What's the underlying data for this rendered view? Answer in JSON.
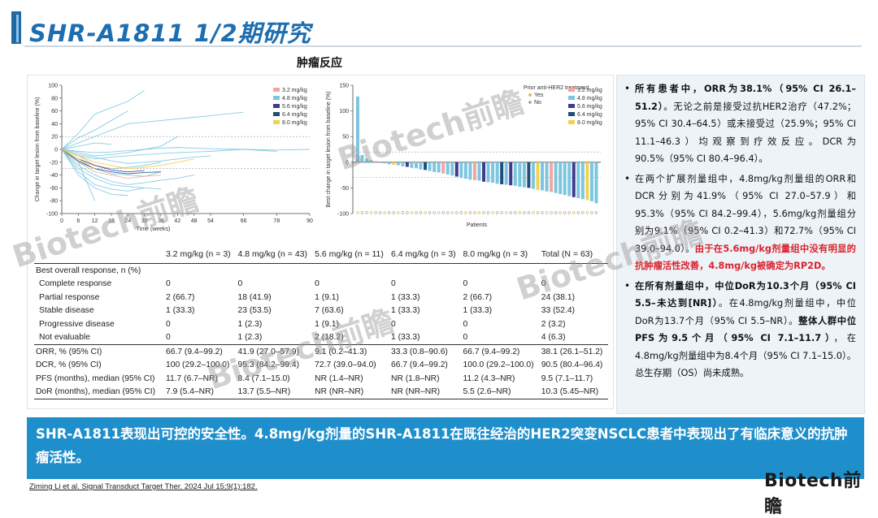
{
  "slide": {
    "title": "SHR-A1811 1/2期研究",
    "subtitle": "肿瘤反应"
  },
  "colors": {
    "accent": "#1f6aa5",
    "title_blue": "#1d6eb0",
    "banner": "#1f8fcc",
    "highlight_red": "#d9232d",
    "dose_3_2": "#f2a6a0",
    "dose_4_8": "#7cc6e0",
    "dose_5_6": "#3f3a8c",
    "dose_6_4": "#1f4e7a",
    "dose_8_0": "#f2d24c"
  },
  "chart_data": [
    {
      "type": "line",
      "ylabel": "Change in target lesion from baseline (%)",
      "xlabel": "Time (weeks)",
      "x_ticks": [
        "0",
        "6",
        "12",
        "18",
        "24",
        "30",
        "36",
        "42",
        "48",
        "54",
        "66",
        "78",
        "90"
      ],
      "y_ticks": [
        "100",
        "80",
        "60",
        "40",
        "20",
        "0",
        "-20",
        "-40",
        "-60",
        "-80",
        "-100"
      ],
      "xlim": [
        0,
        90
      ],
      "ylim": [
        -100,
        100
      ],
      "reference_lines": [
        20,
        -30
      ],
      "legend": [
        {
          "name": "3.2 mg/kg",
          "color_key": "dose_3_2"
        },
        {
          "name": "4.8 mg/kg",
          "color_key": "dose_4_8"
        },
        {
          "name": "5.6 mg/kg",
          "color_key": "dose_5_6"
        },
        {
          "name": "6.4 mg/kg",
          "color_key": "dose_6_4"
        },
        {
          "name": "8.0 mg/kg",
          "color_key": "dose_8_0"
        }
      ],
      "series": [
        {
          "dose": "dose_4_8",
          "x": [
            0,
            6,
            12,
            18,
            24,
            36,
            48,
            66
          ],
          "y": [
            0,
            10,
            20,
            30,
            40,
            45,
            50,
            58
          ]
        },
        {
          "dose": "dose_4_8",
          "x": [
            0,
            6,
            12,
            24,
            30
          ],
          "y": [
            0,
            25,
            55,
            75,
            92
          ]
        },
        {
          "dose": "dose_4_8",
          "x": [
            0,
            6,
            12,
            18,
            24
          ],
          "y": [
            0,
            18,
            30,
            45,
            60
          ]
        },
        {
          "dose": "dose_4_8",
          "x": [
            0,
            6,
            12,
            18,
            24,
            30,
            36,
            42
          ],
          "y": [
            0,
            -5,
            -10,
            -8,
            -5,
            0,
            5,
            20
          ]
        },
        {
          "dose": "dose_4_8",
          "x": [
            0,
            6,
            12,
            18,
            30,
            42,
            54,
            66,
            78
          ],
          "y": [
            0,
            -10,
            -15,
            -12,
            -8,
            -5,
            -3,
            0,
            -3
          ]
        },
        {
          "dose": "dose_4_8",
          "x": [
            0,
            6,
            12,
            18,
            24,
            30,
            36
          ],
          "y": [
            0,
            -20,
            -30,
            -38,
            -40,
            -42,
            -35
          ]
        },
        {
          "dose": "dose_4_8",
          "x": [
            0,
            6,
            12,
            18,
            24,
            30,
            36,
            42,
            48
          ],
          "y": [
            0,
            -25,
            -40,
            -50,
            -55,
            -52,
            -48,
            -45,
            -40
          ]
        },
        {
          "dose": "dose_4_8",
          "x": [
            0,
            6,
            12,
            18,
            24,
            30
          ],
          "y": [
            0,
            -35,
            -55,
            -62,
            -65,
            -60
          ]
        },
        {
          "dose": "dose_4_8",
          "x": [
            0,
            6,
            12,
            18,
            24
          ],
          "y": [
            0,
            -40,
            -60,
            -70,
            -72
          ]
        },
        {
          "dose": "dose_4_8",
          "x": [
            0,
            6,
            12,
            18,
            24,
            30,
            36
          ],
          "y": [
            0,
            -15,
            -25,
            -30,
            -28,
            -25,
            -20
          ]
        },
        {
          "dose": "dose_4_8",
          "x": [
            0,
            6,
            12,
            18,
            24,
            30,
            36,
            42,
            48,
            54
          ],
          "y": [
            0,
            -8,
            -12,
            -18,
            -22,
            -20,
            -18,
            -15,
            -12,
            -10
          ]
        },
        {
          "dose": "dose_4_8",
          "x": [
            0,
            6,
            12,
            18
          ],
          "y": [
            0,
            5,
            10,
            8
          ]
        },
        {
          "dose": "dose_4_8",
          "x": [
            0,
            6,
            12,
            18,
            24,
            30,
            36,
            42,
            48,
            54,
            66,
            78,
            90
          ],
          "y": [
            0,
            -3,
            -5,
            -4,
            -2,
            0,
            2,
            3,
            2,
            1,
            0,
            -1,
            0
          ]
        },
        {
          "dose": "dose_4_8",
          "x": [
            0,
            6,
            12,
            18,
            24,
            30,
            36
          ],
          "y": [
            0,
            -30,
            -45,
            -55,
            -58,
            -60,
            -62
          ]
        },
        {
          "dose": "dose_4_8",
          "x": [
            0,
            6,
            12
          ],
          "y": [
            0,
            -20,
            -80
          ]
        },
        {
          "dose": "dose_3_2",
          "x": [
            0,
            6,
            12,
            18,
            24,
            30,
            36
          ],
          "y": [
            0,
            -20,
            -35,
            -40,
            -45,
            -42,
            -40
          ]
        },
        {
          "dose": "dose_3_2",
          "x": [
            0,
            6,
            12,
            18
          ],
          "y": [
            0,
            -10,
            -25,
            -30
          ]
        },
        {
          "dose": "dose_5_6",
          "x": [
            0,
            6,
            12,
            18,
            24,
            30
          ],
          "y": [
            0,
            -15,
            -25,
            -32,
            -35,
            -33
          ]
        },
        {
          "dose": "dose_6_4",
          "x": [
            0,
            6,
            12,
            18,
            24,
            30,
            36
          ],
          "y": [
            0,
            -18,
            -30,
            -35,
            -38,
            -36,
            -35
          ]
        },
        {
          "dose": "dose_8_0",
          "x": [
            0,
            6,
            12,
            18,
            24,
            30,
            36,
            42,
            48
          ],
          "y": [
            0,
            -10,
            -20,
            -25,
            -30,
            -28,
            -25,
            -20,
            -15
          ]
        },
        {
          "dose": "dose_8_0",
          "x": [
            0,
            6,
            12
          ],
          "y": [
            0,
            -15,
            -30
          ]
        }
      ]
    },
    {
      "type": "bar",
      "ylabel": "Best change in target lesion from baseline (%)",
      "xlabel": "Patients",
      "y_ticks": [
        "150",
        "100",
        "50",
        "0",
        "-50",
        "-100"
      ],
      "ylim": [
        -100,
        150
      ],
      "reference_lines": [
        20,
        -30
      ],
      "legend_markers": [
        {
          "name": "Prior anti-HER2 treatment",
          "symbol": "none"
        },
        {
          "name": "Yes",
          "symbol": "dot-yellow"
        },
        {
          "name": "No",
          "symbol": "dot-grey"
        }
      ],
      "legend": [
        {
          "name": "3.2 mg/kg",
          "color_key": "dose_3_2"
        },
        {
          "name": "4.8 mg/kg",
          "color_key": "dose_4_8"
        },
        {
          "name": "5.6 mg/kg",
          "color_key": "dose_5_6"
        },
        {
          "name": "6.4 mg/kg",
          "color_key": "dose_6_4"
        },
        {
          "name": "8.0 mg/kg",
          "color_key": "dose_8_0"
        }
      ],
      "bars": [
        {
          "v": 128,
          "d": "dose_4_8"
        },
        {
          "v": 14,
          "d": "dose_4_8"
        },
        {
          "v": 7,
          "d": "dose_4_8"
        },
        {
          "v": 4,
          "d": "dose_4_8"
        },
        {
          "v": 2,
          "d": "dose_3_2"
        },
        {
          "v": 1,
          "d": "dose_4_8"
        },
        {
          "v": -2,
          "d": "dose_4_8"
        },
        {
          "v": -4,
          "d": "dose_4_8"
        },
        {
          "v": -5,
          "d": "dose_8_0"
        },
        {
          "v": -6,
          "d": "dose_4_8"
        },
        {
          "v": -8,
          "d": "dose_4_8"
        },
        {
          "v": -9,
          "d": "dose_5_6"
        },
        {
          "v": -11,
          "d": "dose_4_8"
        },
        {
          "v": -12,
          "d": "dose_4_8"
        },
        {
          "v": -14,
          "d": "dose_4_8"
        },
        {
          "v": -15,
          "d": "dose_6_4"
        },
        {
          "v": -17,
          "d": "dose_4_8"
        },
        {
          "v": -19,
          "d": "dose_4_8"
        },
        {
          "v": -20,
          "d": "dose_4_8"
        },
        {
          "v": -22,
          "d": "dose_3_2"
        },
        {
          "v": -24,
          "d": "dose_4_8"
        },
        {
          "v": -26,
          "d": "dose_4_8"
        },
        {
          "v": -28,
          "d": "dose_5_6"
        },
        {
          "v": -30,
          "d": "dose_4_8"
        },
        {
          "v": -32,
          "d": "dose_4_8"
        },
        {
          "v": -34,
          "d": "dose_4_8"
        },
        {
          "v": -35,
          "d": "dose_3_2"
        },
        {
          "v": -36,
          "d": "dose_4_8"
        },
        {
          "v": -38,
          "d": "dose_5_6"
        },
        {
          "v": -39,
          "d": "dose_4_8"
        },
        {
          "v": -40,
          "d": "dose_4_8"
        },
        {
          "v": -42,
          "d": "dose_4_8"
        },
        {
          "v": -43,
          "d": "dose_6_4"
        },
        {
          "v": -44,
          "d": "dose_4_8"
        },
        {
          "v": -45,
          "d": "dose_5_6"
        },
        {
          "v": -46,
          "d": "dose_4_8"
        },
        {
          "v": -48,
          "d": "dose_4_8"
        },
        {
          "v": -49,
          "d": "dose_4_8"
        },
        {
          "v": -50,
          "d": "dose_6_4"
        },
        {
          "v": -52,
          "d": "dose_4_8"
        },
        {
          "v": -54,
          "d": "dose_8_0"
        },
        {
          "v": -55,
          "d": "dose_4_8"
        },
        {
          "v": -57,
          "d": "dose_4_8"
        },
        {
          "v": -58,
          "d": "dose_3_2"
        },
        {
          "v": -60,
          "d": "dose_4_8"
        },
        {
          "v": -62,
          "d": "dose_4_8"
        },
        {
          "v": -64,
          "d": "dose_4_8"
        },
        {
          "v": -66,
          "d": "dose_4_8"
        },
        {
          "v": -68,
          "d": "dose_5_6"
        },
        {
          "v": -70,
          "d": "dose_4_8"
        },
        {
          "v": -72,
          "d": "dose_4_8"
        },
        {
          "v": -74,
          "d": "dose_8_0"
        },
        {
          "v": -76,
          "d": "dose_4_8"
        },
        {
          "v": -80,
          "d": "dose_4_8"
        }
      ]
    }
  ],
  "table": {
    "headers": [
      "",
      "3.2 mg/kg (n = 3)",
      "4.8 mg/kg (n = 43)",
      "5.6 mg/kg (n = 11)",
      "6.4 mg/kg (n = 3)",
      "8.0 mg/kg (n = 3)",
      "Total (N = 63)"
    ],
    "section_label": "Best overall response, n (%)",
    "rows": [
      {
        "label": "Complete response",
        "cells": [
          "0",
          "0",
          "0",
          "0",
          "0",
          "0"
        ]
      },
      {
        "label": "Partial response",
        "cells": [
          "2 (66.7)",
          "18 (41.9)",
          "1 (9.1)",
          "1 (33.3)",
          "2 (66.7)",
          "24 (38.1)"
        ]
      },
      {
        "label": "Stable disease",
        "cells": [
          "1 (33.3)",
          "23 (53.5)",
          "7 (63.6)",
          "1 (33.3)",
          "1 (33.3)",
          "33 (52.4)"
        ]
      },
      {
        "label": "Progressive disease",
        "cells": [
          "0",
          "1 (2.3)",
          "1 (9.1)",
          "0",
          "0",
          "2 (3.2)"
        ]
      },
      {
        "label": "Not evaluable",
        "cells": [
          "0",
          "1 (2.3)",
          "2 (18.2)",
          "1 (33.3)",
          "0",
          "4 (6.3)"
        ]
      },
      {
        "label": "ORR, % (95% CI)",
        "cells": [
          "66.7 (9.4–99.2)",
          "41.9 (27.0–57.9)",
          "9.1 (0.2–41.3)",
          "33.3 (0.8–90.6)",
          "66.7 (9.4–99.2)",
          "38.1 (26.1–51.2)"
        ]
      },
      {
        "label": "DCR, % (95% CI)",
        "cells": [
          "100 (29.2–100.0)",
          "95.3 (84.2–99.4)",
          "72.7 (39.0–94.0)",
          "66.7 (9.4–99.2)",
          "100.0 (29.2–100.0)",
          "90.5 (80.4–96.4)"
        ]
      },
      {
        "label": "PFS (months), median (95% CI)",
        "cells": [
          "11.7 (6.7–NR)",
          "8.4 (7.1–15.0)",
          "NR (1.4–NR)",
          "NR (1.8–NR)",
          "11.2 (4.3–NR)",
          "9.5 (7.1–11.7)"
        ]
      },
      {
        "label": "DoR (months), median (95% CI)",
        "cells": [
          "7.9 (5.4–NR)",
          "13.7 (5.5–NR)",
          "NR (NR–NR)",
          "NR (NR–NR)",
          "5.5 (2.6–NR)",
          "10.3 (5.45–NR)"
        ]
      }
    ]
  },
  "sidebar": {
    "bullet1": {
      "lead": "所有患者中，ORR为38.1%（95% CI 26.1–51.2）",
      "rest": "。无论之前是接受过抗HER2治疗（47.2%；95% CI 30.4–64.5）或未接受过（25.9%；95% CI 11.1–46.3）均观察到疗效反应。DCR为90.5%（95% CI 80.4–96.4）。"
    },
    "bullet2": {
      "normal": "在两个扩展剂量组中，4.8mg/kg剂量组的ORR和DCR分别为41.9%（95% CI 27.0–57.9）和95.3%（95% CI 84.2–99.4），5.6mg/kg剂量组分别为9.1%（95% CI 0.2–41.3）和72.7%（95% CI 39.0–94.0）。",
      "red": "由于在5.6mg/kg剂量组中没有明显的抗肿瘤活性改善，4.8mg/kg被确定为RP2D。"
    },
    "bullet3": {
      "lead": "在所有剂量组中，中位DoR为10.3个月（95% CI 5.5–未达到[NR]）",
      "mid": "。在4.8mg/kg剂量组中，中位DoR为13.7个月（95% CI 5.5–NR）。",
      "lead2": "整体人群中位PFS为9.5个月（95% CI 7.1–11.7）",
      "rest": "，在4.8mg/kg剂量组中为8.4个月（95% CI 7.1–15.0）。总生存期（OS）尚未成熟。"
    }
  },
  "banner": {
    "text": "SHR-A1811表现出可控的安全性。4.8mg/kg剂量的SHR-A1811在既往经治的HER2突变NSCLC患者中表现出了有临床意义的抗肿瘤活性。"
  },
  "citation": "Ziming Li et al. Signal Transduct Target Ther. 2024 Jul 15;9(1):182.",
  "brand": "Biotech前瞻",
  "watermark": "Biotech前瞻"
}
